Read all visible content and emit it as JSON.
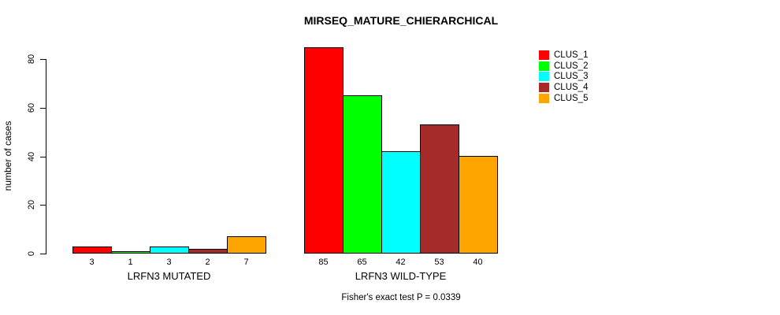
{
  "title": "MIRSEQ_MATURE_CHIERARCHICAL",
  "footer": "Fisher's exact test P = 0.0339",
  "chart_data": {
    "type": "bar",
    "title": "MIRSEQ_MATURE_CHIERARCHICAL",
    "ylabel": "number of cases",
    "xlabel": "",
    "yticks": [
      "0",
      "20",
      "40",
      "60",
      "80"
    ],
    "ylim": [
      0,
      88
    ],
    "grid": false,
    "legend_position": "right",
    "series_names": [
      "CLUS_1",
      "CLUS_2",
      "CLUS_3",
      "CLUS_4",
      "CLUS_5"
    ],
    "series_colors": [
      "#FF0000",
      "#00FF00",
      "#00FFFF",
      "#A52A2A",
      "#FFA500"
    ],
    "groups": [
      {
        "label": "LRFN3 MUTATED",
        "values": [
          3,
          1,
          3,
          2,
          7
        ]
      },
      {
        "label": "LRFN3 WILD-TYPE",
        "values": [
          85,
          65,
          42,
          53,
          40
        ]
      }
    ],
    "annotation": "Fisher's exact test P = 0.0339"
  }
}
